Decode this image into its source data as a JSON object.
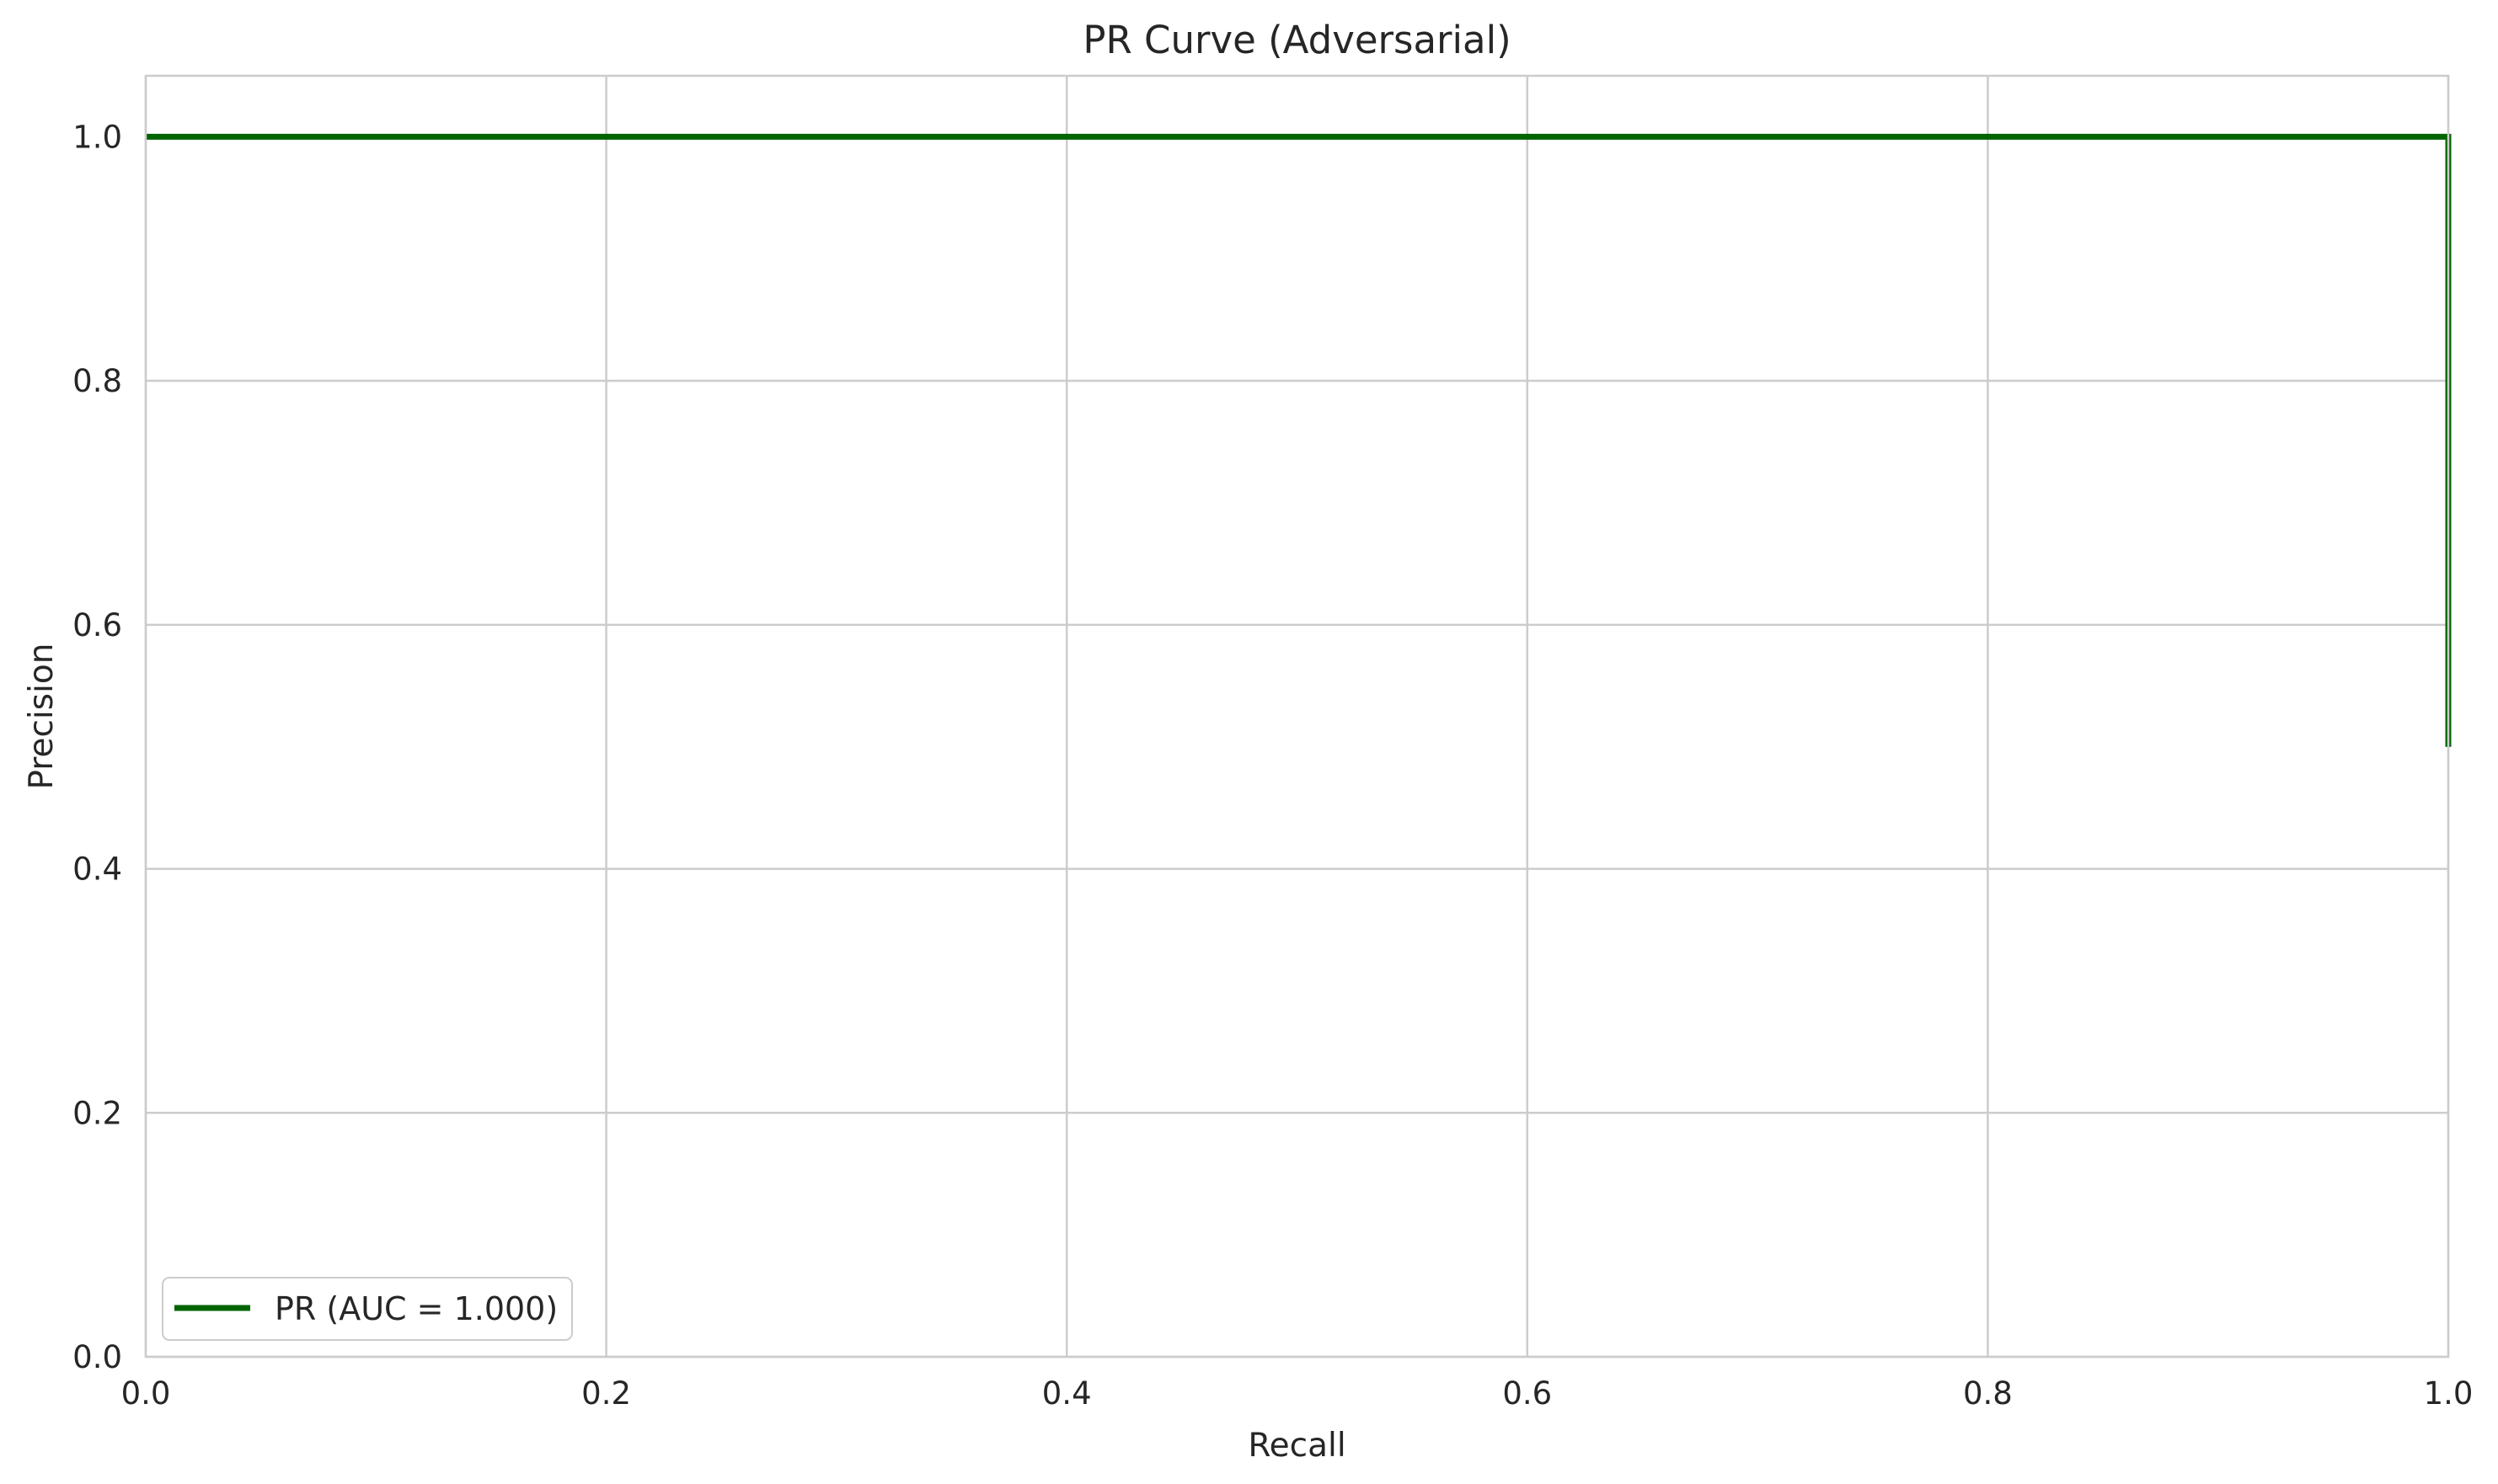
{
  "chart_data": {
    "type": "line",
    "title": "PR Curve (Adversarial)",
    "xlabel": "Recall",
    "ylabel": "Precision",
    "xlim": [
      0.0,
      1.0
    ],
    "ylim": [
      0.0,
      1.05
    ],
    "xticks": [
      0.0,
      0.2,
      0.4,
      0.6,
      0.8,
      1.0
    ],
    "yticks": [
      0.0,
      0.2,
      0.4,
      0.6,
      0.8,
      1.0
    ],
    "xtick_labels": [
      "0.0",
      "0.2",
      "0.4",
      "0.6",
      "0.8",
      "1.0"
    ],
    "ytick_labels": [
      "0.0",
      "0.2",
      "0.4",
      "0.6",
      "0.8",
      "1.0"
    ],
    "grid": true,
    "legend_position": "lower-left",
    "series": [
      {
        "name": "PR (AUC = 1.000)",
        "color": "#006400",
        "x": [
          0.0,
          1.0,
          1.0
        ],
        "y": [
          1.0,
          1.0,
          0.5
        ]
      }
    ]
  }
}
